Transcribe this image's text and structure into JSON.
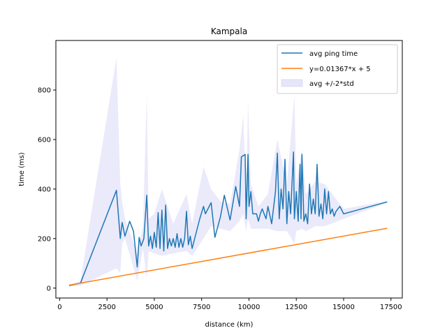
{
  "chart_data": {
    "type": "line",
    "title": "Kampala",
    "xlabel": "distance (km)",
    "ylabel": "time (ms)",
    "xlim": [
      -200,
      18100
    ],
    "ylim": [
      -40,
      1000
    ],
    "xticks": [
      0,
      2500,
      5000,
      7500,
      10000,
      12500,
      15000,
      17500
    ],
    "yticks": [
      0,
      200,
      400,
      600,
      800
    ],
    "grid": false,
    "legend_position": "top-right",
    "legend": [
      {
        "label": "avg ping time",
        "kind": "line",
        "color": "#1f77b4"
      },
      {
        "label": "y=0.01367*x + 5",
        "kind": "line",
        "color": "#ff7f0e"
      },
      {
        "label": "avg +/-2*std",
        "kind": "patch",
        "color": "#e6e6fa"
      }
    ],
    "series": [
      {
        "name": "avg ping time",
        "color": "#1f77b4",
        "points": [
          [
            500,
            10
          ],
          [
            1100,
            20
          ],
          [
            3000,
            395
          ],
          [
            3200,
            200
          ],
          [
            3300,
            265
          ],
          [
            3450,
            210
          ],
          [
            3700,
            270
          ],
          [
            3900,
            230
          ],
          [
            4100,
            85
          ],
          [
            4200,
            205
          ],
          [
            4300,
            170
          ],
          [
            4450,
            200
          ],
          [
            4600,
            375
          ],
          [
            4700,
            170
          ],
          [
            4800,
            210
          ],
          [
            4900,
            160
          ],
          [
            5000,
            225
          ],
          [
            5100,
            165
          ],
          [
            5200,
            305
          ],
          [
            5300,
            160
          ],
          [
            5400,
            315
          ],
          [
            5500,
            150
          ],
          [
            5600,
            335
          ],
          [
            5700,
            160
          ],
          [
            5800,
            200
          ],
          [
            5900,
            170
          ],
          [
            6000,
            200
          ],
          [
            6100,
            165
          ],
          [
            6200,
            220
          ],
          [
            6300,
            165
          ],
          [
            6400,
            200
          ],
          [
            6500,
            165
          ],
          [
            6600,
            200
          ],
          [
            6700,
            310
          ],
          [
            6800,
            175
          ],
          [
            6900,
            210
          ],
          [
            7000,
            160
          ],
          [
            7400,
            280
          ],
          [
            7600,
            330
          ],
          [
            7700,
            300
          ],
          [
            8000,
            345
          ],
          [
            8200,
            205
          ],
          [
            8500,
            290
          ],
          [
            8700,
            375
          ],
          [
            9000,
            275
          ],
          [
            9300,
            410
          ],
          [
            9500,
            330
          ],
          [
            9600,
            530
          ],
          [
            9800,
            540
          ],
          [
            9850,
            280
          ],
          [
            9950,
            540
          ],
          [
            10000,
            330
          ],
          [
            10100,
            390
          ],
          [
            10200,
            300
          ],
          [
            10400,
            300
          ],
          [
            10500,
            270
          ],
          [
            10600,
            300
          ],
          [
            10700,
            320
          ],
          [
            10900,
            280
          ],
          [
            11000,
            330
          ],
          [
            11200,
            260
          ],
          [
            11400,
            390
          ],
          [
            11500,
            545
          ],
          [
            11600,
            280
          ],
          [
            11700,
            400
          ],
          [
            11800,
            320
          ],
          [
            11900,
            520
          ],
          [
            12000,
            260
          ],
          [
            12100,
            390
          ],
          [
            12200,
            300
          ],
          [
            12350,
            550
          ],
          [
            12400,
            280
          ],
          [
            12500,
            390
          ],
          [
            12600,
            270
          ],
          [
            12700,
            500
          ],
          [
            12750,
            280
          ],
          [
            12800,
            540
          ],
          [
            12900,
            270
          ],
          [
            13000,
            300
          ],
          [
            13100,
            260
          ],
          [
            13200,
            420
          ],
          [
            13300,
            300
          ],
          [
            13400,
            360
          ],
          [
            13500,
            300
          ],
          [
            13600,
            500
          ],
          [
            13700,
            290
          ],
          [
            13800,
            340
          ],
          [
            13900,
            280
          ],
          [
            14000,
            400
          ],
          [
            14100,
            300
          ],
          [
            14200,
            390
          ],
          [
            14300,
            300
          ],
          [
            14400,
            320
          ],
          [
            14500,
            290
          ],
          [
            14600,
            310
          ],
          [
            14800,
            330
          ],
          [
            15000,
            300
          ],
          [
            17300,
            348
          ]
        ]
      },
      {
        "name": "y=0.01367*x + 5",
        "color": "#ff7f0e",
        "points": [
          [
            500,
            11.8
          ],
          [
            17300,
            241.5
          ]
        ]
      }
    ],
    "band": {
      "name": "avg +/-2*std",
      "color": "#e6e6fa",
      "upper": [
        [
          500,
          12
        ],
        [
          1100,
          30
        ],
        [
          3000,
          930
        ],
        [
          3200,
          420
        ],
        [
          3300,
          350
        ],
        [
          3450,
          280
        ],
        [
          4100,
          140
        ],
        [
          4400,
          250
        ],
        [
          4600,
          785
        ],
        [
          4700,
          280
        ],
        [
          5000,
          300
        ],
        [
          5400,
          400
        ],
        [
          6000,
          260
        ],
        [
          6700,
          380
        ],
        [
          7000,
          260
        ],
        [
          7600,
          490
        ],
        [
          8000,
          400
        ],
        [
          8500,
          350
        ],
        [
          9000,
          340
        ],
        [
          9500,
          560
        ],
        [
          9700,
          700
        ],
        [
          9850,
          330
        ],
        [
          9950,
          760
        ],
        [
          10100,
          420
        ],
        [
          10500,
          330
        ],
        [
          11000,
          380
        ],
        [
          11500,
          600
        ],
        [
          12000,
          420
        ],
        [
          12400,
          780
        ],
        [
          12500,
          420
        ],
        [
          12800,
          560
        ],
        [
          13000,
          380
        ],
        [
          13500,
          430
        ],
        [
          14000,
          420
        ],
        [
          15000,
          320
        ],
        [
          17300,
          352
        ]
      ],
      "lower": [
        [
          500,
          8
        ],
        [
          1100,
          10
        ],
        [
          3000,
          80
        ],
        [
          3200,
          60
        ],
        [
          3300,
          180
        ],
        [
          3450,
          200
        ],
        [
          4100,
          30
        ],
        [
          4400,
          160
        ],
        [
          4600,
          40
        ],
        [
          4700,
          150
        ],
        [
          5000,
          140
        ],
        [
          5400,
          130
        ],
        [
          6000,
          140
        ],
        [
          6700,
          150
        ],
        [
          7000,
          130
        ],
        [
          7600,
          200
        ],
        [
          8000,
          250
        ],
        [
          8500,
          240
        ],
        [
          9000,
          230
        ],
        [
          9500,
          270
        ],
        [
          9700,
          300
        ],
        [
          9850,
          230
        ],
        [
          9950,
          280
        ],
        [
          10100,
          240
        ],
        [
          10500,
          240
        ],
        [
          11000,
          240
        ],
        [
          11500,
          230
        ],
        [
          12000,
          230
        ],
        [
          12400,
          180
        ],
        [
          12500,
          230
        ],
        [
          12800,
          240
        ],
        [
          13000,
          230
        ],
        [
          13500,
          250
        ],
        [
          14000,
          250
        ],
        [
          15000,
          280
        ],
        [
          17300,
          344
        ]
      ]
    }
  }
}
